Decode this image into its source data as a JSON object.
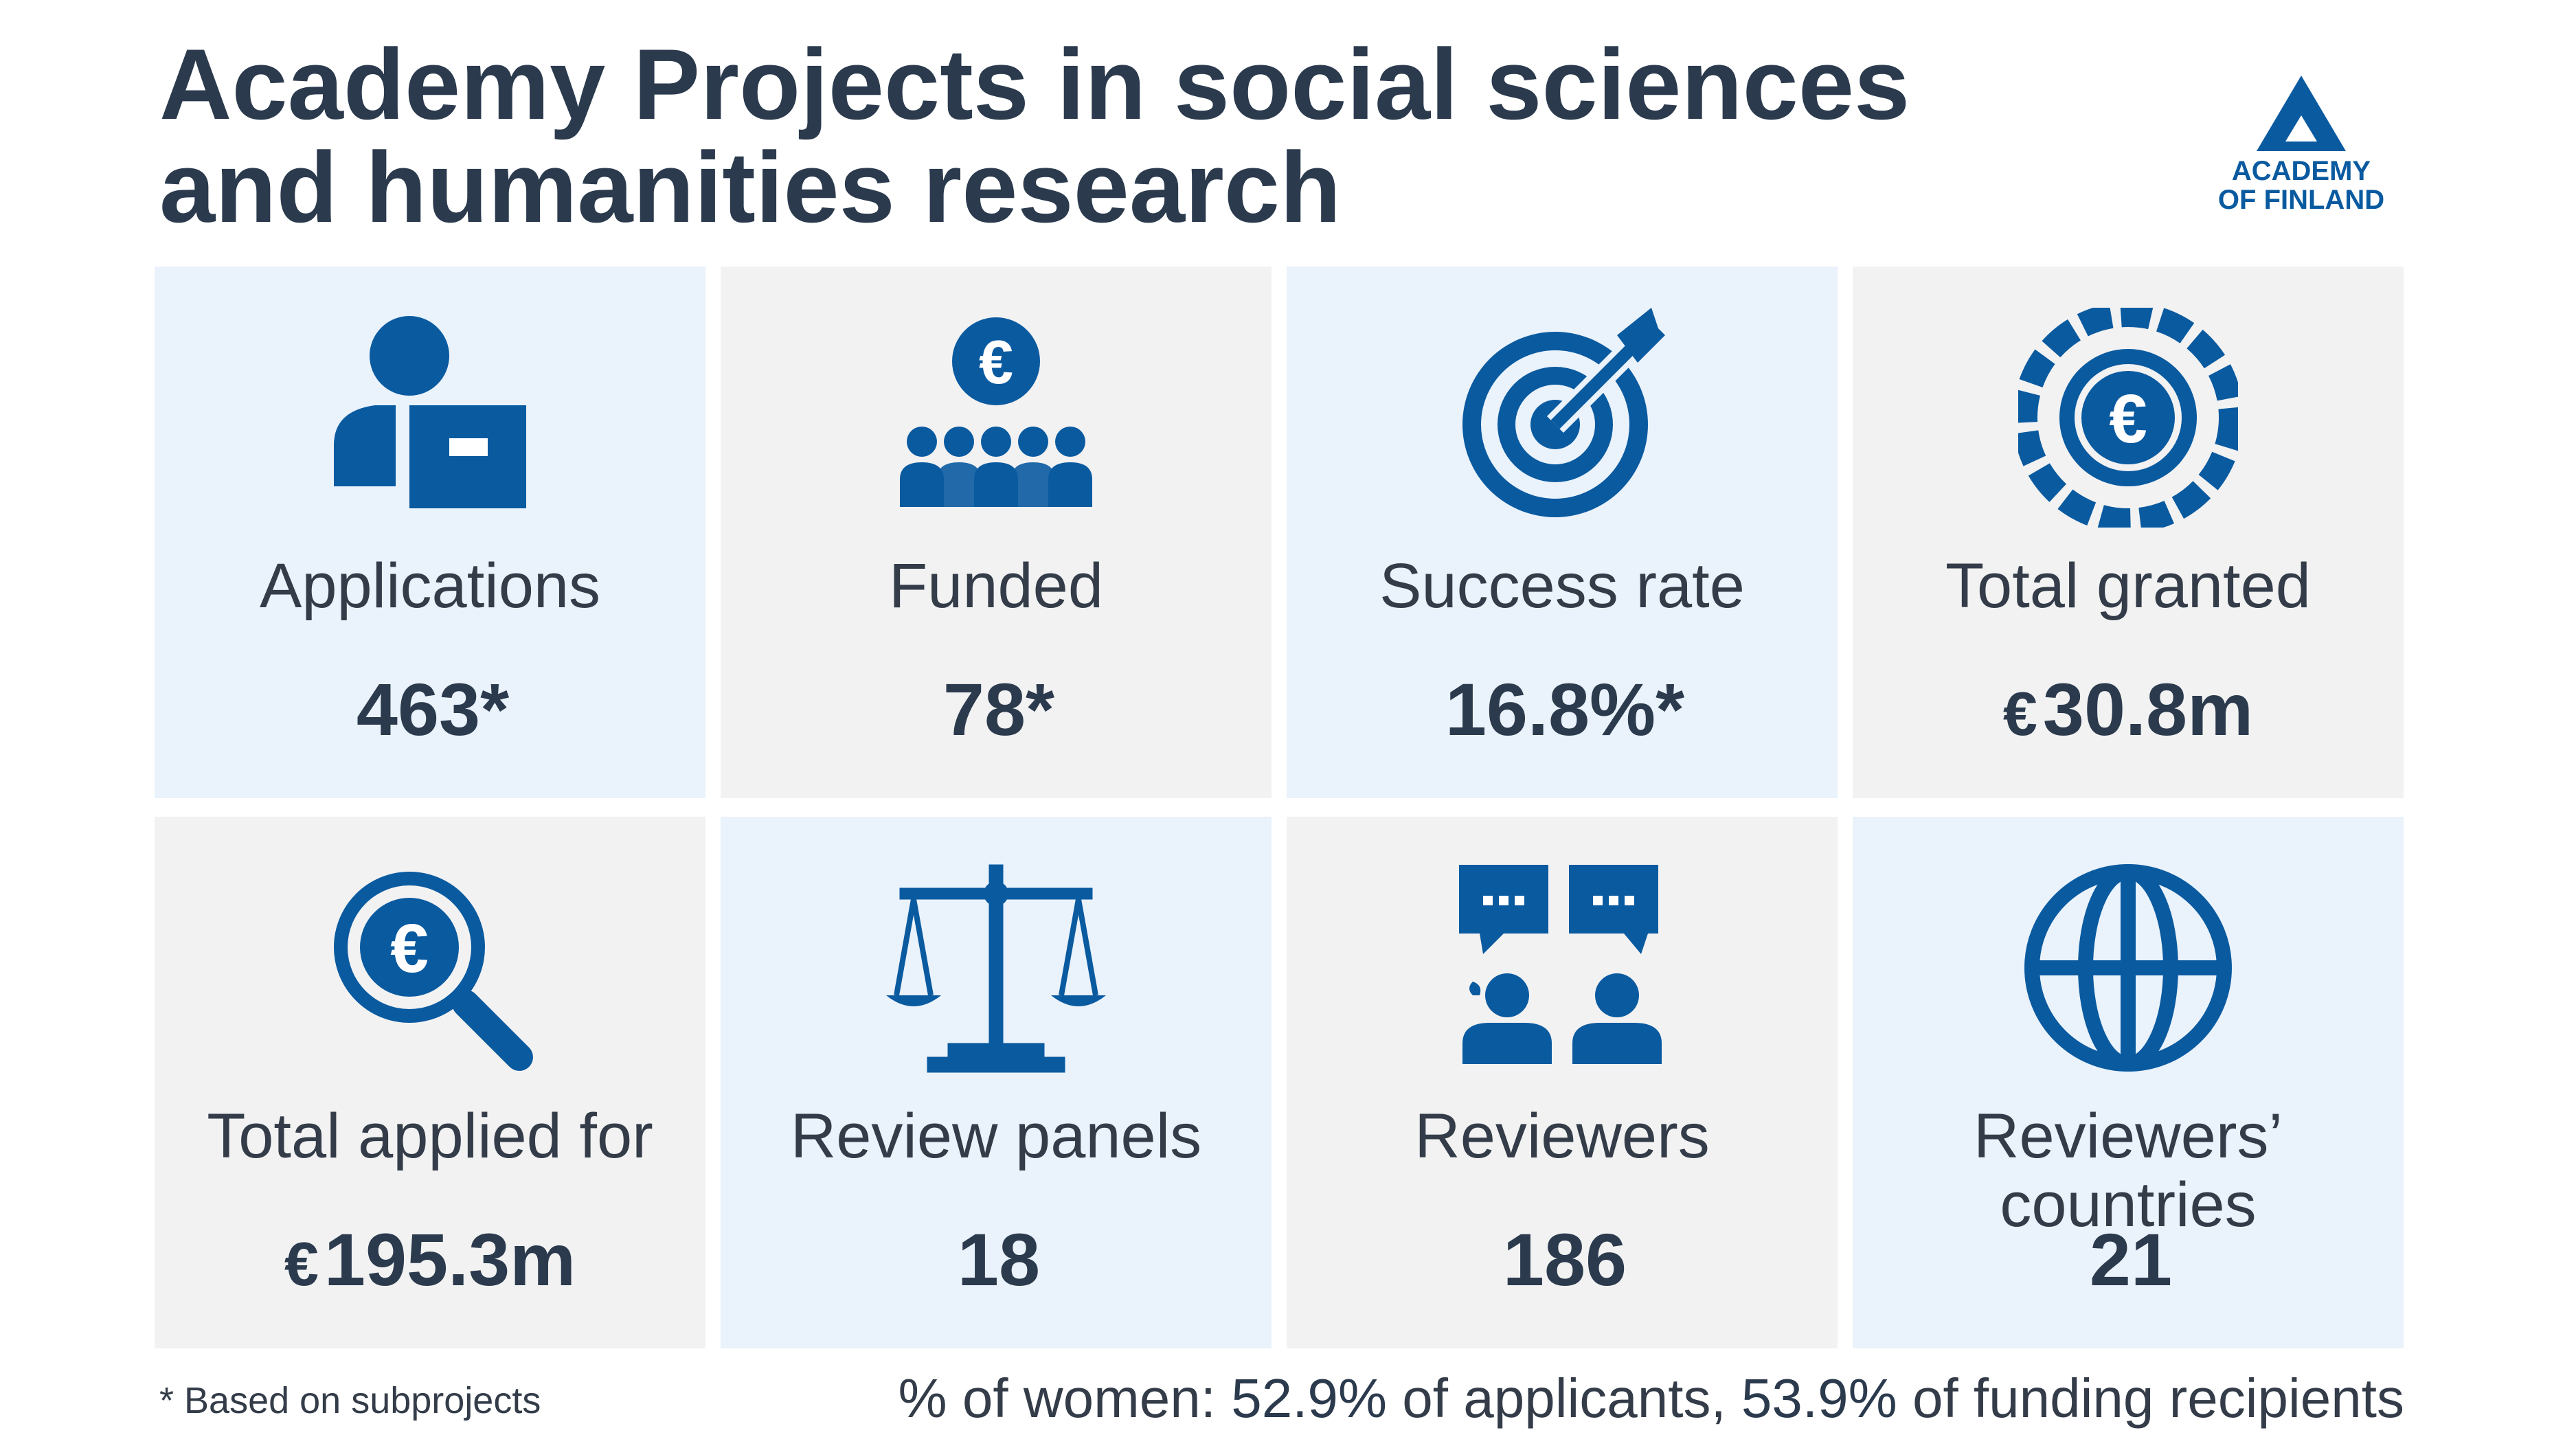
{
  "title": "Academy Projects in social sciences and humanities research",
  "logo": {
    "line1": "ACADEMY",
    "line2": "OF FINLAND"
  },
  "colors": {
    "accent": "#0a5aa0",
    "light_tile": "#eaf2fb",
    "grey_tile": "#f2f2f2",
    "text": "#2b3a4d"
  },
  "stats": [
    {
      "icon": "applicant-icon",
      "label": "Applications",
      "value": "463*",
      "currency": ""
    },
    {
      "icon": "funded-group-icon",
      "label": "Funded",
      "value": "78*",
      "currency": ""
    },
    {
      "icon": "target-icon",
      "label": "Success rate",
      "value": "16.8%*",
      "currency": ""
    },
    {
      "icon": "euro-coin-icon",
      "label": "Total granted",
      "value": "30.8m",
      "currency": "€"
    },
    {
      "icon": "euro-search-icon",
      "label": "Total applied for",
      "value": "195.3m",
      "currency": "€"
    },
    {
      "icon": "scales-icon",
      "label": "Review panels",
      "value": "18",
      "currency": ""
    },
    {
      "icon": "reviewers-chat-icon",
      "label": "Reviewers",
      "value": "186",
      "currency": ""
    },
    {
      "icon": "globe-icon",
      "label": "Reviewers’ countries",
      "value": "21",
      "currency": ""
    }
  ],
  "footnote": "* Based on subprojects",
  "women": {
    "prefix": "% of women: ",
    "applicants_value": "52.9%",
    "applicants_text": " of applicants, ",
    "recipients_value": "53.9%",
    "recipients_text": " of funding recipients"
  }
}
